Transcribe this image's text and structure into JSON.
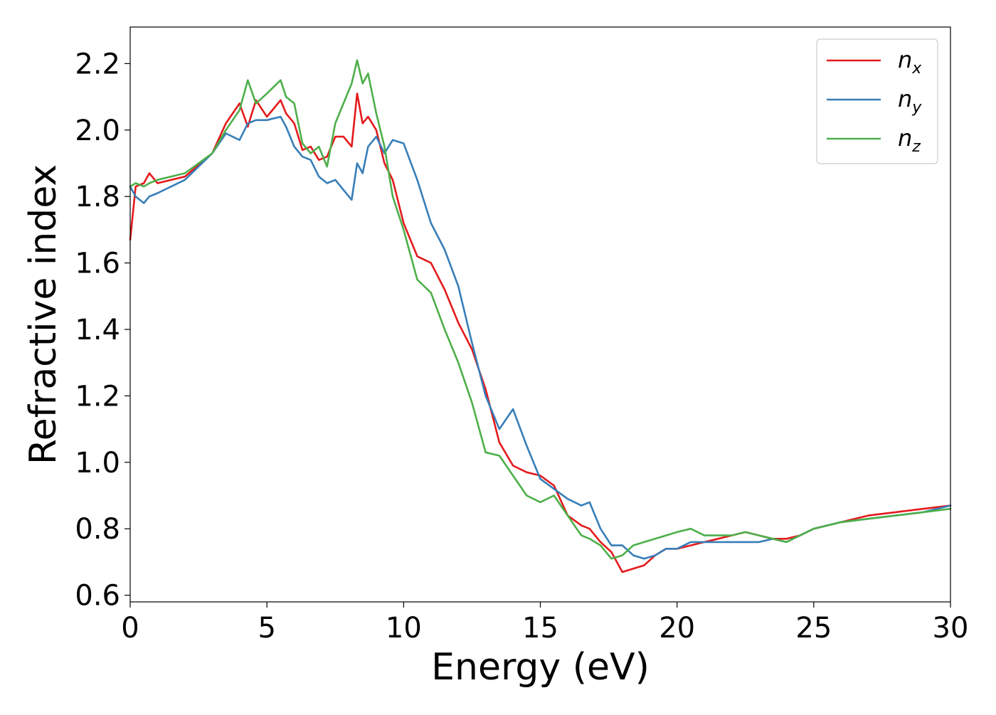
{
  "chart_data": {
    "type": "line",
    "title": "",
    "xlabel": "Energy (eV)",
    "ylabel": "Refractive index",
    "xlim": [
      0,
      30
    ],
    "ylim": [
      0.58,
      2.31
    ],
    "xticks": [
      0,
      5,
      10,
      15,
      20,
      25,
      30
    ],
    "xtick_labels": [
      "0",
      "5",
      "10",
      "15",
      "20",
      "25",
      "30"
    ],
    "yticks": [
      0.6,
      0.8,
      1.0,
      1.2,
      1.4,
      1.6,
      1.8,
      2.0,
      2.2
    ],
    "ytick_labels": [
      "0.6",
      "0.8",
      "1.0",
      "1.2",
      "1.4",
      "1.6",
      "1.8",
      "2.0",
      "2.2"
    ],
    "grid": false,
    "legend": {
      "position": "top-right",
      "entries": [
        {
          "base": "n",
          "sub": "x",
          "color": "#e41a1c"
        },
        {
          "base": "n",
          "sub": "y",
          "color": "#377eb8"
        },
        {
          "base": "n",
          "sub": "z",
          "color": "#4daf4a"
        }
      ]
    },
    "x": [
      0,
      0.2,
      0.5,
      0.7,
      1,
      2,
      3,
      3.5,
      4,
      4.3,
      4.6,
      5,
      5.5,
      5.7,
      6,
      6.3,
      6.6,
      6.9,
      7.2,
      7.5,
      7.8,
      8.1,
      8.3,
      8.5,
      8.7,
      9,
      9.3,
      9.6,
      10,
      10.5,
      11,
      11.5,
      12,
      12.5,
      13,
      13.5,
      14,
      14.5,
      15,
      15.5,
      16,
      16.5,
      16.8,
      17.2,
      17.6,
      18,
      18.4,
      18.8,
      19.2,
      19.6,
      20,
      20.5,
      21,
      21.5,
      22,
      22.5,
      23,
      23.5,
      24,
      24.5,
      25,
      26,
      27,
      28,
      29,
      30
    ],
    "series": [
      {
        "name": "n_x",
        "color": "#e41a1c",
        "values": [
          1.67,
          1.83,
          1.84,
          1.87,
          1.84,
          1.86,
          1.93,
          2.02,
          2.08,
          2.01,
          2.09,
          2.04,
          2.09,
          2.05,
          2.02,
          1.94,
          1.95,
          1.91,
          1.92,
          1.98,
          1.98,
          1.95,
          2.11,
          2.02,
          2.04,
          2.0,
          1.9,
          1.85,
          1.72,
          1.62,
          1.6,
          1.52,
          1.42,
          1.34,
          1.22,
          1.06,
          0.99,
          0.97,
          0.96,
          0.93,
          0.84,
          0.81,
          0.8,
          0.76,
          0.73,
          0.67,
          0.68,
          0.69,
          0.72,
          0.74,
          0.74,
          0.75,
          0.76,
          0.77,
          0.78,
          0.79,
          0.78,
          0.77,
          0.77,
          0.78,
          0.8,
          0.82,
          0.84,
          0.85,
          0.86,
          0.87
        ]
      },
      {
        "name": "n_y",
        "color": "#377eb8",
        "values": [
          1.83,
          1.8,
          1.78,
          1.8,
          1.81,
          1.85,
          1.93,
          1.99,
          1.97,
          2.02,
          2.03,
          2.03,
          2.04,
          2.01,
          1.95,
          1.92,
          1.91,
          1.86,
          1.84,
          1.85,
          1.82,
          1.79,
          1.9,
          1.87,
          1.95,
          1.98,
          1.93,
          1.97,
          1.96,
          1.85,
          1.72,
          1.64,
          1.53,
          1.36,
          1.2,
          1.1,
          1.16,
          1.05,
          0.95,
          0.92,
          0.89,
          0.87,
          0.88,
          0.8,
          0.75,
          0.75,
          0.72,
          0.71,
          0.72,
          0.74,
          0.74,
          0.76,
          0.76,
          0.76,
          0.76,
          0.76,
          0.76,
          0.77,
          0.76,
          0.78,
          0.8,
          0.82,
          0.83,
          0.84,
          0.85,
          0.87
        ]
      },
      {
        "name": "n_z",
        "color": "#4daf4a",
        "values": [
          1.83,
          1.84,
          1.83,
          1.84,
          1.85,
          1.87,
          1.93,
          2.0,
          2.06,
          2.15,
          2.08,
          2.11,
          2.15,
          2.1,
          2.08,
          1.96,
          1.93,
          1.95,
          1.89,
          2.02,
          2.08,
          2.14,
          2.21,
          2.14,
          2.17,
          2.05,
          1.95,
          1.8,
          1.7,
          1.55,
          1.51,
          1.4,
          1.3,
          1.18,
          1.03,
          1.02,
          0.96,
          0.9,
          0.88,
          0.9,
          0.84,
          0.78,
          0.77,
          0.75,
          0.71,
          0.72,
          0.75,
          0.76,
          0.77,
          0.78,
          0.79,
          0.8,
          0.78,
          0.78,
          0.78,
          0.79,
          0.78,
          0.77,
          0.76,
          0.78,
          0.8,
          0.82,
          0.83,
          0.84,
          0.85,
          0.86
        ]
      }
    ]
  }
}
